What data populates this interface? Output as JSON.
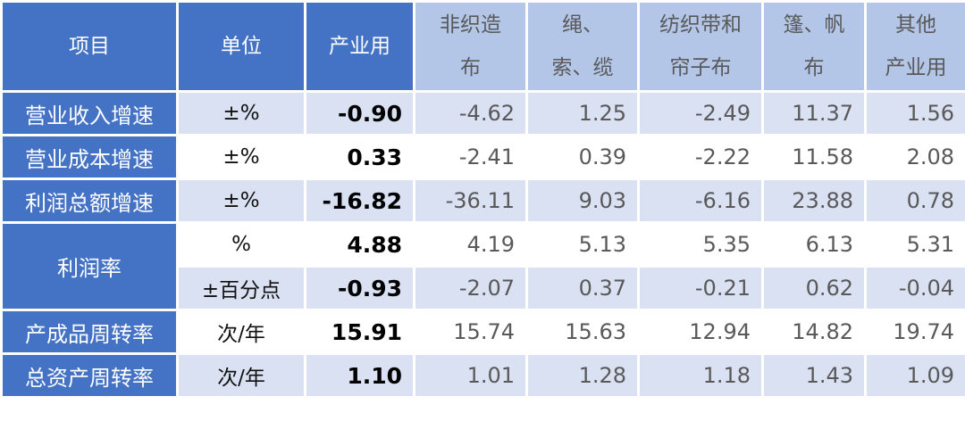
{
  "colors": {
    "header_dark": "#4472C4",
    "header_light": "#B4C6E7",
    "stripe": "#D9E1F2"
  },
  "headers": [
    {
      "line1": "项目",
      "line2": ""
    },
    {
      "line1": "单位",
      "line2": ""
    },
    {
      "line1": "产业用",
      "line2": ""
    },
    {
      "line1": "非织造",
      "line2": "布"
    },
    {
      "line1": "绳、",
      "line2": "索、缆"
    },
    {
      "line1": "纺织带和",
      "line2": "帘子布"
    },
    {
      "line1": "篷、帆",
      "line2": "布"
    },
    {
      "line1": "其他",
      "line2": "产业用"
    }
  ],
  "rows": [
    {
      "item": "营业收入增速",
      "unit": "±%",
      "main": "-0.90",
      "values": [
        "-4.62",
        "1.25",
        "-2.49",
        "11.37",
        "1.56"
      ]
    },
    {
      "item": "营业成本增速",
      "unit": "±%",
      "main": "0.33",
      "values": [
        "-2.41",
        "0.39",
        "-2.22",
        "11.58",
        "2.08"
      ]
    },
    {
      "item": "利润总额增速",
      "unit": "±%",
      "main": "-16.82",
      "values": [
        "-36.11",
        "9.03",
        "-6.16",
        "23.88",
        "0.78"
      ]
    },
    {
      "item": "利润率",
      "unit": "%",
      "main": "4.88",
      "values": [
        "4.19",
        "5.13",
        "5.35",
        "6.13",
        "5.31"
      ]
    },
    {
      "item": "",
      "unit": "±百分点",
      "main": "-0.93",
      "values": [
        "-2.07",
        "0.37",
        "-0.21",
        "0.62",
        "-0.04"
      ]
    },
    {
      "item": "产成品周转率",
      "unit": "次/年",
      "main": "15.91",
      "values": [
        "15.74",
        "15.63",
        "12.94",
        "14.82",
        "19.74"
      ]
    },
    {
      "item": "总资产周转率",
      "unit": "次/年",
      "main": "1.10",
      "values": [
        "1.01",
        "1.28",
        "1.18",
        "1.43",
        "1.09"
      ]
    }
  ]
}
